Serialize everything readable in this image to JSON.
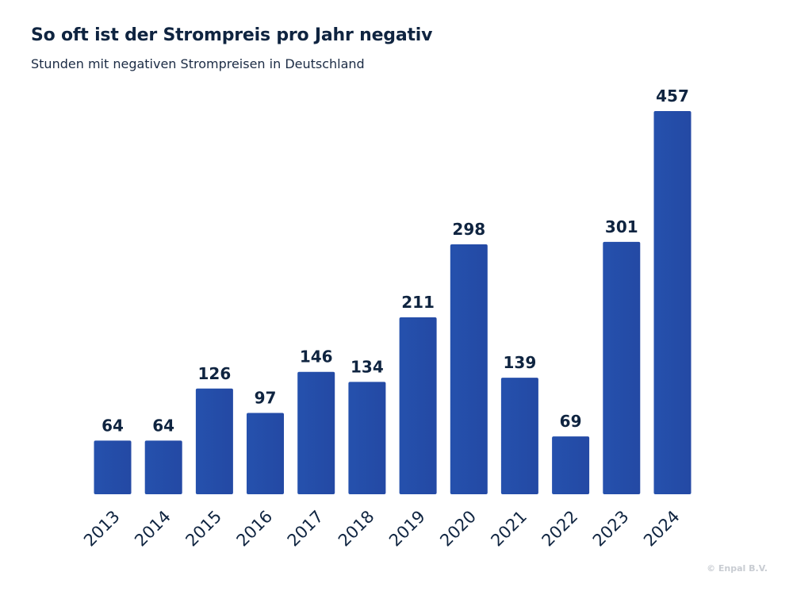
{
  "title": "So oft ist der Strompreis pro Jahr negativ",
  "subtitle": "Stunden mit negativen Strompreisen in Deutschland",
  "copyright": "© Enpal B.V.",
  "colors": {
    "bar": "#2551ad",
    "bar_dark": "#2449a4",
    "text": "#0f2440"
  },
  "chart_data": {
    "type": "bar",
    "title": "So oft ist der Strompreis pro Jahr negativ",
    "subtitle": "Stunden mit negativen Strompreisen in Deutschland",
    "categories": [
      "2013",
      "2014",
      "2015",
      "2016",
      "2017",
      "2018",
      "2019",
      "2020",
      "2021",
      "2022",
      "2023",
      "2024"
    ],
    "values": [
      64,
      64,
      126,
      97,
      146,
      134,
      211,
      298,
      139,
      69,
      301,
      457
    ],
    "ylim": [
      0,
      457
    ],
    "grid": false,
    "legend": "none"
  }
}
